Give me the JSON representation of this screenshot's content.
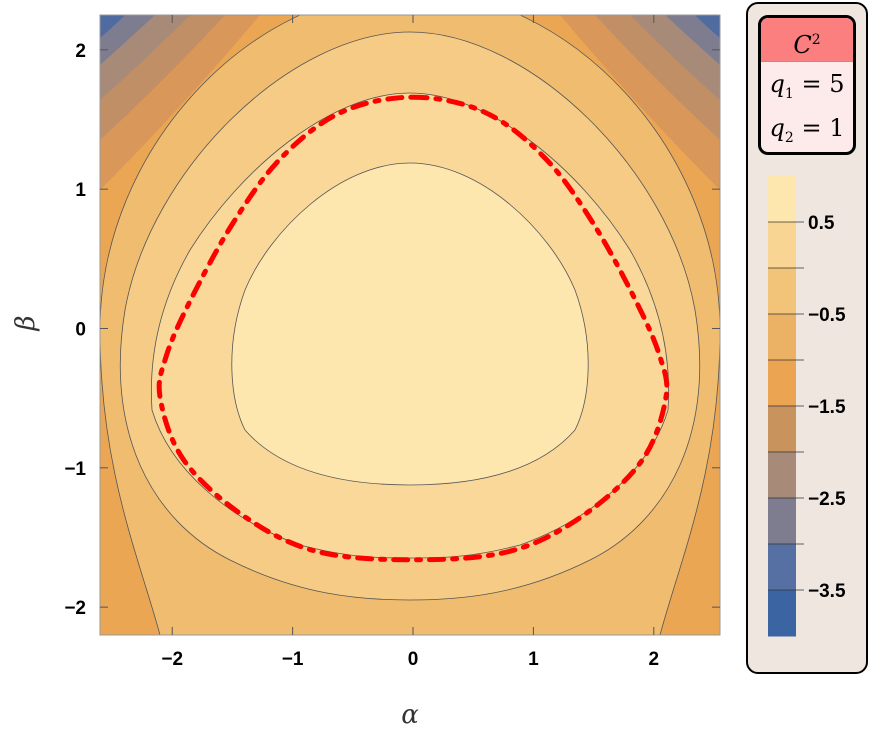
{
  "chart_data": {
    "type": "contour",
    "title": "",
    "xlabel": "α",
    "ylabel": "β",
    "xlim": [
      -2.6,
      2.55
    ],
    "ylim": [
      -2.2,
      2.25
    ],
    "x_ticks": [
      -2,
      -1,
      0,
      1,
      2
    ],
    "y_ticks": [
      -2,
      -1,
      0,
      1,
      2
    ],
    "x_tick_labels": [
      "−2",
      "−1",
      "0",
      "1",
      "2"
    ],
    "y_tick_labels": [
      "−2",
      "−1",
      "0",
      "1",
      "2"
    ],
    "contour_levels": [
      1,
      0,
      -1,
      -2,
      -3,
      -4
    ],
    "highlighted_curve": {
      "description": "red dashed level curve",
      "color": "#ff0000",
      "points": [
        [
          0,
          1.66
        ],
        [
          0.6,
          1.55
        ],
        [
          1.1,
          1.22
        ],
        [
          1.5,
          0.75
        ],
        [
          1.85,
          0.2
        ],
        [
          2.05,
          -0.2
        ],
        [
          2.1,
          -0.5
        ],
        [
          1.9,
          -0.95
        ],
        [
          1.4,
          -1.35
        ],
        [
          0.8,
          -1.6
        ],
        [
          0,
          -1.66
        ],
        [
          -0.8,
          -1.6
        ],
        [
          -1.4,
          -1.35
        ],
        [
          -1.9,
          -0.95
        ],
        [
          -2.1,
          -0.5
        ],
        [
          -2.05,
          -0.2
        ],
        [
          -1.85,
          0.2
        ],
        [
          -1.5,
          0.75
        ],
        [
          -1.1,
          1.22
        ],
        [
          -0.6,
          1.55
        ]
      ]
    },
    "legend": {
      "placement": "right",
      "colorbar_labels": [
        "0.5",
        "−0.5",
        "−1.5",
        "−2.5",
        "−3.5"
      ],
      "colorbar_colors": [
        "#fde7ae",
        "#f8d592",
        "#f2c479",
        "#ebb266",
        "#eaa452",
        "#c9935e",
        "#a88a78",
        "#7d7d8f",
        "#5770a4",
        "#3a65a2"
      ],
      "parameters": {
        "title": "C",
        "title_exponent": "2",
        "q1_label": "q",
        "q1_index": "1",
        "q1_value": "= 5",
        "q2_label": "q",
        "q2_index": "2",
        "q2_value": "= 1"
      }
    }
  }
}
